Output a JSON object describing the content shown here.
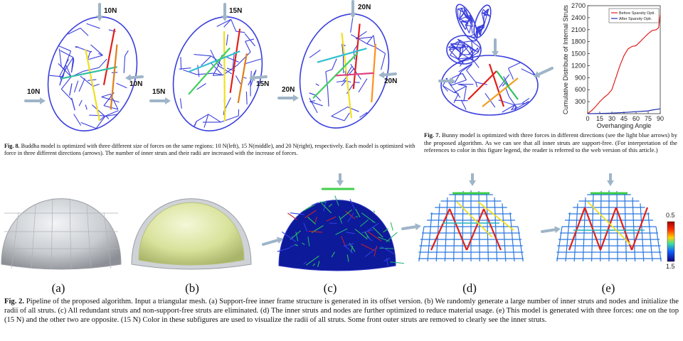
{
  "figure8": {
    "caption_label": "Fig. 8.",
    "caption_text": "Buddha model is optimized with three different size of forces on the same regions: 10 N(left), 15 N(middle), and 20 N(right), respectively. Each model is optimized with force in three different directions (arrows). The number of inner struts and their radii are increased with the increase of forces.",
    "panels": [
      {
        "top": "10N",
        "left": "10N",
        "right": "10N"
      },
      {
        "top": "15N",
        "left": "15N",
        "right": "15N"
      },
      {
        "top": "20N",
        "left": "20N",
        "right": "20N"
      }
    ]
  },
  "figure7": {
    "caption_label": "Fig. 7.",
    "caption_text": "Bunny model is optimized with three forces in different directions (see the light blue arrows) by the proposed algorithm. As we can see that all inner struts are support-free. (For interpretation of the references to color in this figure legend, the reader is referred to the web version of this article.)"
  },
  "chart_data": {
    "type": "line",
    "xlabel": "Overhanging Angle",
    "ylabel": "Cumulative Distribute of Internal Struts",
    "x_ticks": [
      0,
      15,
      30,
      45,
      60,
      75,
      90
    ],
    "y_ticks": [
      300,
      600,
      900,
      1200,
      1500,
      1800,
      2100,
      2400,
      2700
    ],
    "xlim": [
      0,
      90
    ],
    "ylim": [
      0,
      2700
    ],
    "legend": "top-right",
    "series": [
      {
        "name": "Before Sparsity Opti.",
        "color": "#e0201b",
        "x": [
          0,
          5,
          10,
          15,
          20,
          25,
          30,
          35,
          40,
          45,
          50,
          55,
          60,
          65,
          70,
          75,
          80,
          85,
          88,
          90
        ],
        "y": [
          0,
          80,
          180,
          300,
          400,
          480,
          600,
          900,
          1200,
          1450,
          1620,
          1680,
          1700,
          1800,
          1900,
          2000,
          2080,
          2100,
          2150,
          2480
        ]
      },
      {
        "name": "After Sparsity Opti.",
        "color": "#1f2fb0",
        "x": [
          0,
          15,
          30,
          45,
          60,
          75,
          80,
          90
        ],
        "y": [
          0,
          5,
          15,
          30,
          50,
          70,
          90,
          120
        ]
      }
    ]
  },
  "figure2": {
    "caption_label": "Fig. 2.",
    "caption_text": "Pipeline of the proposed algorithm. Input a triangular mesh. (a) Support-free inner frame structure is generated in its offset version. (b) We randomly generate a large number of inner struts and nodes and initialize the radii of all struts. (c) All redundant struts and non-support-free struts are eliminated. (d) The inner struts and nodes are further optimized to reduce material usage. (e) This model is generated with three forces: one on the top (15 N) and the other two are opposite. (15 N) Color in these subfigures are used to visualize the radii of all struts. Some front outer struts are removed to clearly see the inner struts.",
    "sublabels": [
      "(a)",
      "(b)",
      "(c)",
      "(d)",
      "(e)"
    ],
    "colorbar": {
      "top": "0.5",
      "bottom": "1.5"
    }
  }
}
